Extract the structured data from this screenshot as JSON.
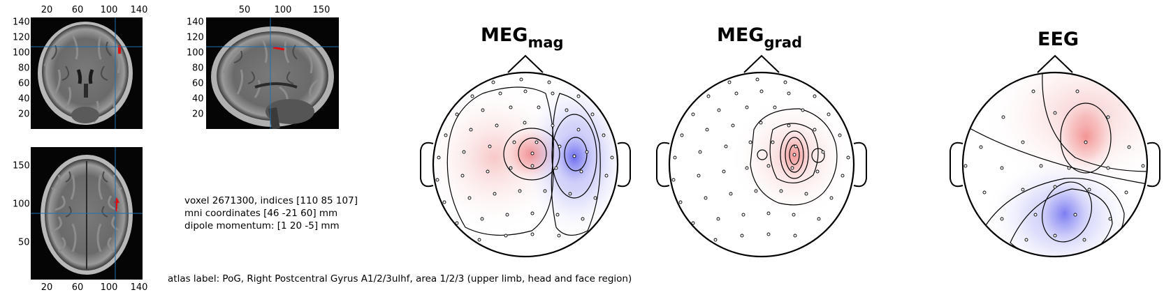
{
  "slices": {
    "coronal": {
      "x_ticks": [
        "20",
        "60",
        "100",
        "140"
      ],
      "y_ticks": [
        "140",
        "120",
        "100",
        "80",
        "60",
        "40",
        "20"
      ]
    },
    "sagittal": {
      "x_ticks": [
        "50",
        "100",
        "150"
      ],
      "y_ticks": [
        "140",
        "120",
        "100",
        "80",
        "60",
        "40",
        "20"
      ]
    },
    "axial": {
      "x_ticks": [
        "20",
        "60",
        "100",
        "140"
      ],
      "y_ticks": [
        "150",
        "100",
        "50"
      ]
    }
  },
  "info": {
    "voxel": "voxel 2671300, indices [110 85 107]",
    "mni": "mni coordinates [46 -21 60] mm",
    "momentum": "dipole momentum: [1 20 -5] mm",
    "atlas": "atlas label: PoG, Right Postcentral Gyrus A1/2/3ulhf, area 1/2/3 (upper limb, head and face region)"
  },
  "topoplots": [
    {
      "title": "MEG",
      "subscript": "mag"
    },
    {
      "title": "MEG",
      "subscript": "grad"
    },
    {
      "title": "EEG",
      "subscript": ""
    }
  ],
  "colors": {
    "positive": "#f08080",
    "negative": "#7070f0",
    "crosshair": "#1f6fb0",
    "dipole": "#e01010"
  }
}
